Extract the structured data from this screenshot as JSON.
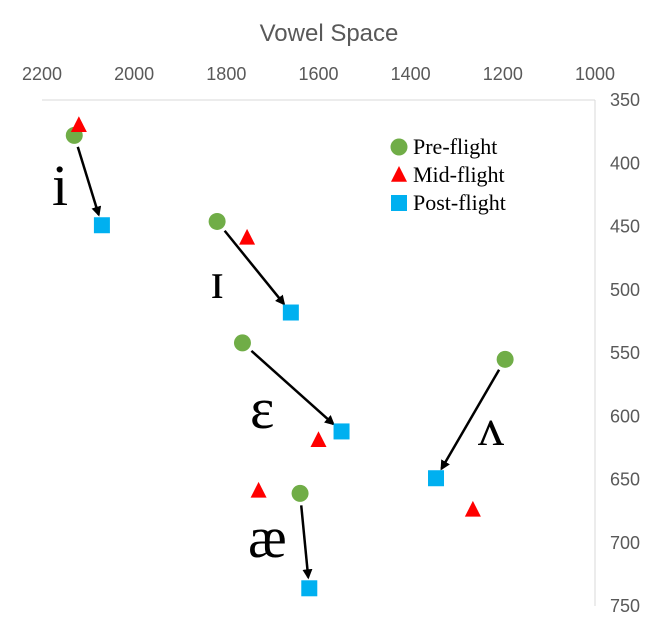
{
  "chart_data": {
    "type": "scatter",
    "title": "Vowel Space",
    "xlabel": "",
    "ylabel": "",
    "x_axis": {
      "position": "top",
      "reversed": true,
      "range": [
        2200,
        1000
      ],
      "ticks": [
        2200,
        2000,
        1800,
        1600,
        1400,
        1200,
        1000
      ]
    },
    "y_axis": {
      "position": "right",
      "reversed": true,
      "range": [
        350,
        750
      ],
      "ticks": [
        350,
        400,
        450,
        500,
        550,
        600,
        650,
        700,
        750
      ]
    },
    "grid": false,
    "legend": {
      "placement": "top-right"
    },
    "series": [
      {
        "name": "Pre-flight",
        "marker": "circle",
        "color": "#70AD47",
        "points": [
          {
            "vowel": "i",
            "x": 2130,
            "y": 378
          },
          {
            "vowel": "ɪ",
            "x": 1820,
            "y": 446
          },
          {
            "vowel": "ɛ",
            "x": 1765,
            "y": 542
          },
          {
            "vowel": "ʌ",
            "x": 1195,
            "y": 555
          },
          {
            "vowel": "æ",
            "x": 1640,
            "y": 661
          }
        ]
      },
      {
        "name": "Mid-flight",
        "marker": "triangle",
        "color": "#FF0000",
        "points": [
          {
            "vowel": "i",
            "x": 2120,
            "y": 370
          },
          {
            "vowel": "ɪ",
            "x": 1755,
            "y": 459
          },
          {
            "vowel": "ɛ",
            "x": 1600,
            "y": 619
          },
          {
            "vowel": "ʌ",
            "x": 1265,
            "y": 674
          },
          {
            "vowel": "æ",
            "x": 1730,
            "y": 659
          }
        ]
      },
      {
        "name": "Post-flight",
        "marker": "square",
        "color": "#00B0F0",
        "points": [
          {
            "vowel": "i",
            "x": 2070,
            "y": 449
          },
          {
            "vowel": "ɪ",
            "x": 1660,
            "y": 518
          },
          {
            "vowel": "ɛ",
            "x": 1550,
            "y": 612
          },
          {
            "vowel": "ʌ",
            "x": 1345,
            "y": 649
          },
          {
            "vowel": "æ",
            "x": 1620,
            "y": 736
          }
        ]
      }
    ],
    "arrows": [
      {
        "vowel": "i",
        "from": "Pre-flight",
        "to": "Post-flight"
      },
      {
        "vowel": "ɪ",
        "from": "Pre-flight",
        "to": "Post-flight"
      },
      {
        "vowel": "ɛ",
        "from": "Pre-flight",
        "to": "Post-flight"
      },
      {
        "vowel": "ʌ",
        "from": "Pre-flight",
        "to": "Post-flight"
      },
      {
        "vowel": "æ",
        "from": "Pre-flight",
        "to": "Post-flight"
      }
    ],
    "vowel_labels": [
      "i",
      "ɪ",
      "ɛ",
      "ʌ",
      "æ"
    ]
  }
}
